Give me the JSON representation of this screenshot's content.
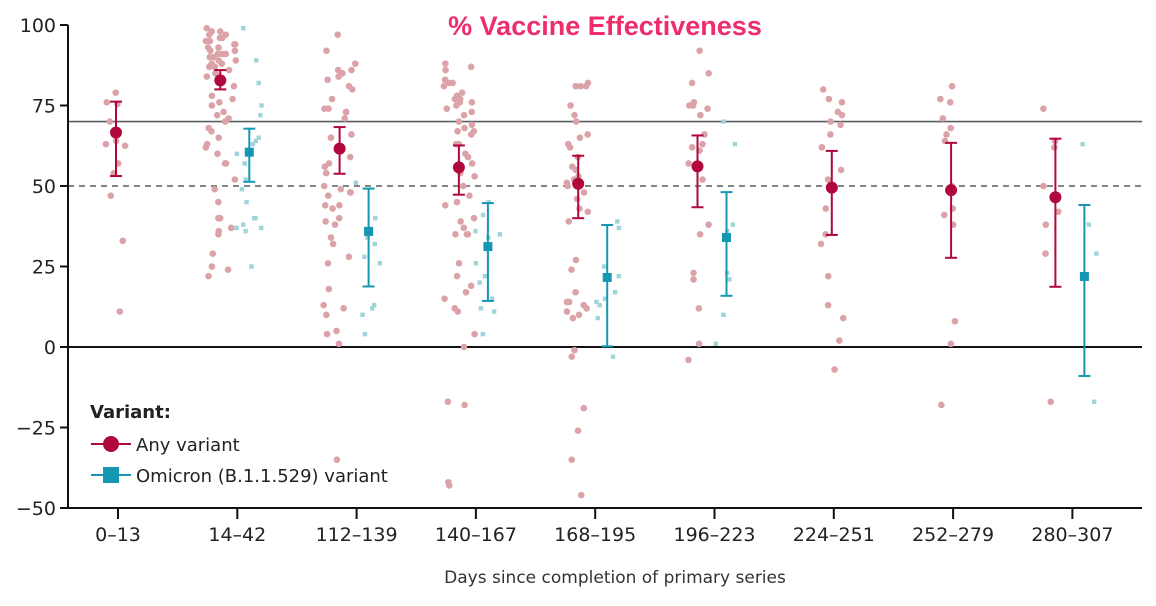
{
  "chart_data": {
    "type": "scatter",
    "title": "% Vaccine Effectiveness",
    "xlabel": "Days since completion of primary series",
    "ylabel": "",
    "ylim": [
      -50,
      100
    ],
    "yticks": [
      100,
      75,
      50,
      25,
      0,
      -25,
      -50
    ],
    "ytick_labels": [
      "100",
      "75",
      "50",
      "25",
      "0",
      "−25",
      "−50"
    ],
    "reference_lines": [
      {
        "y": 70,
        "style": "solid"
      },
      {
        "y": 50,
        "style": "dashed"
      },
      {
        "y": 0,
        "style": "solid"
      }
    ],
    "categories": [
      "0–13",
      "14–42",
      "112–139",
      "140–167",
      "168–195",
      "196–223",
      "224–251",
      "252–279",
      "280–307"
    ],
    "legend": {
      "title": "Variant:",
      "placement": "bottom-left"
    },
    "series": [
      {
        "name": "Any variant",
        "color": "#b0073c",
        "dot_color": "#dba3a8",
        "estimates": [
          66.6,
          82.8,
          61.6,
          55.8,
          50.7,
          56.1,
          49.5,
          48.7,
          46.5
        ],
        "ci_low": [
          53.1,
          80.0,
          53.8,
          47.3,
          40.0,
          43.4,
          34.8,
          27.7,
          18.7
        ],
        "ci_high": [
          76.2,
          86.0,
          68.3,
          62.6,
          59.4,
          65.7,
          60.9,
          63.4,
          64.7
        ],
        "studies": [
          [
            79,
            75.5,
            76,
            70,
            67,
            64,
            63,
            62.5,
            57,
            54,
            47,
            33,
            11
          ],
          [
            99,
            98,
            98,
            97,
            97,
            96,
            96,
            95,
            95,
            94,
            94,
            93,
            93,
            92,
            92,
            91,
            91,
            91,
            90,
            90,
            89,
            89,
            88,
            88,
            87,
            87,
            86,
            85,
            85,
            84,
            81,
            78,
            77,
            76,
            75,
            73,
            72,
            71,
            70,
            68,
            67,
            65,
            63,
            62,
            60,
            57,
            57,
            52,
            49,
            45,
            40,
            40,
            37,
            36,
            35,
            29,
            25,
            24,
            22
          ],
          [
            97,
            92,
            88,
            86,
            86,
            85,
            84,
            83,
            81,
            80,
            77,
            74,
            74,
            73,
            73,
            71,
            66,
            65,
            59,
            57,
            56,
            54,
            50,
            49,
            48,
            48,
            47,
            44,
            44,
            43,
            40,
            39,
            38,
            34,
            32,
            28,
            26,
            18,
            13,
            12,
            10,
            5,
            4,
            1,
            -35
          ],
          [
            88,
            87,
            86,
            83,
            82,
            82,
            81,
            79,
            78,
            77,
            77,
            76,
            76,
            75,
            74,
            73,
            72,
            70,
            69,
            68,
            67,
            67,
            66,
            63,
            63,
            60,
            59,
            57,
            54,
            53,
            50,
            47,
            45,
            44,
            40,
            39,
            37,
            35,
            35,
            35,
            26,
            22,
            19,
            17,
            15,
            12,
            11,
            4,
            0,
            -17,
            -18,
            -42,
            -43
          ],
          [
            82,
            81,
            81,
            81,
            75,
            72,
            70,
            66,
            65,
            63,
            62,
            59,
            56,
            55,
            53,
            52,
            51,
            50,
            48,
            46,
            43,
            42,
            39,
            27,
            24,
            17,
            14,
            14,
            13,
            12,
            11,
            10,
            9,
            -1,
            -3,
            -19,
            -26,
            -35,
            -46
          ],
          [
            92,
            85,
            82,
            76,
            75,
            75,
            74,
            72,
            66,
            63,
            62,
            61,
            57,
            52,
            38,
            35,
            23,
            21,
            12,
            1,
            -4
          ],
          [
            80,
            77,
            76,
            73,
            72,
            70,
            69,
            66,
            62,
            55,
            52,
            43,
            35,
            32,
            22,
            13,
            9,
            2,
            -7
          ],
          [
            81,
            77,
            76,
            71,
            68,
            66,
            64,
            50,
            43,
            41,
            38,
            8,
            1,
            -18
          ],
          [
            74,
            64,
            62,
            50,
            42,
            38,
            29,
            -17
          ]
        ]
      },
      {
        "name": "Omicron (B.1.1.529) variant",
        "color": "#1597b3",
        "dot_color": "#9fd4d8",
        "estimates": [
          null,
          60.5,
          35.9,
          31.2,
          21.6,
          34.0,
          null,
          null,
          21.9
        ],
        "ci_low": [
          null,
          51.3,
          18.8,
          14.3,
          0.2,
          15.9,
          null,
          null,
          -9.0
        ],
        "ci_high": [
          null,
          67.8,
          49.2,
          44.7,
          37.9,
          48.1,
          null,
          null,
          44.1
        ],
        "studies": [
          [],
          [
            99,
            89,
            82,
            75,
            72,
            65,
            64,
            63,
            61,
            60,
            57,
            52,
            49,
            45,
            40,
            40,
            38,
            37,
            37,
            36,
            25
          ],
          [
            51,
            40,
            34,
            32,
            28,
            26,
            13,
            12,
            10,
            4
          ],
          [
            45,
            41,
            36,
            35,
            34,
            26,
            22,
            20,
            15,
            12,
            11,
            4
          ],
          [
            39,
            37,
            25,
            22,
            17,
            15,
            14,
            13,
            9,
            -3
          ],
          [
            70,
            63,
            38,
            36,
            23,
            21,
            10,
            1
          ],
          [],
          [],
          [
            63,
            38,
            29,
            -17
          ]
        ]
      }
    ]
  }
}
